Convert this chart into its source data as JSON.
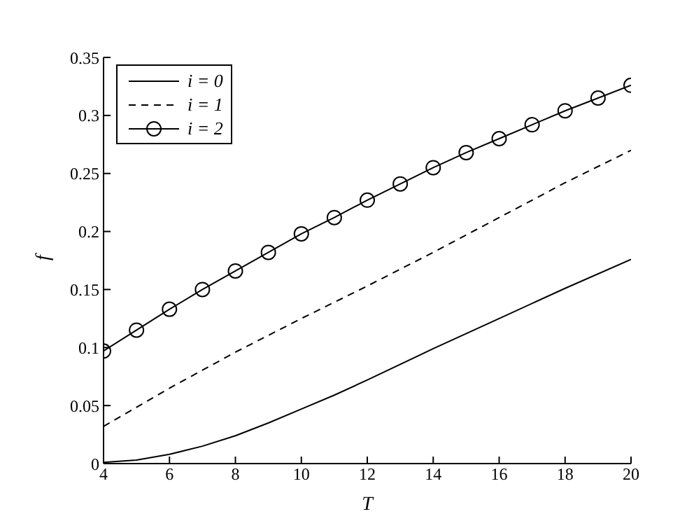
{
  "chart_data": {
    "type": "line",
    "xlabel": "T",
    "ylabel": "f",
    "xlim": [
      4,
      20
    ],
    "xticks": [
      4,
      6,
      8,
      10,
      12,
      14,
      16,
      18,
      20
    ],
    "ylim": [
      0,
      0.35
    ],
    "yticks": [
      0,
      0.05,
      0.1,
      0.15,
      0.2,
      0.25,
      0.3,
      0.35
    ],
    "legend": "top left",
    "series": [
      {
        "name": "i = 0",
        "color": "#000000",
        "line_style": "solid",
        "marker": "none",
        "x": [
          4,
          5,
          6,
          7,
          8,
          9,
          10,
          11,
          12,
          14,
          16,
          18,
          20
        ],
        "values": [
          0.001,
          0.003,
          0.008,
          0.015,
          0.024,
          0.035,
          0.047,
          0.059,
          0.072,
          0.099,
          0.125,
          0.151,
          0.176
        ]
      },
      {
        "name": "i = 1",
        "color": "#000000",
        "line_style": "dashed",
        "marker": "none",
        "x": [
          4,
          6,
          8,
          10,
          12,
          14,
          16,
          18,
          20
        ],
        "values": [
          0.032,
          0.065,
          0.096,
          0.125,
          0.153,
          0.182,
          0.212,
          0.242,
          0.27
        ]
      },
      {
        "name": "i = 2",
        "color": "#000000",
        "line_style": "solid",
        "marker": "circle",
        "x": [
          4,
          5,
          6,
          7,
          8,
          9,
          10,
          11,
          12,
          13,
          14,
          15,
          16,
          17,
          18,
          19,
          20
        ],
        "values": [
          0.097,
          0.115,
          0.133,
          0.15,
          0.166,
          0.182,
          0.198,
          0.212,
          0.227,
          0.241,
          0.255,
          0.268,
          0.28,
          0.292,
          0.304,
          0.315,
          0.326
        ]
      }
    ]
  }
}
